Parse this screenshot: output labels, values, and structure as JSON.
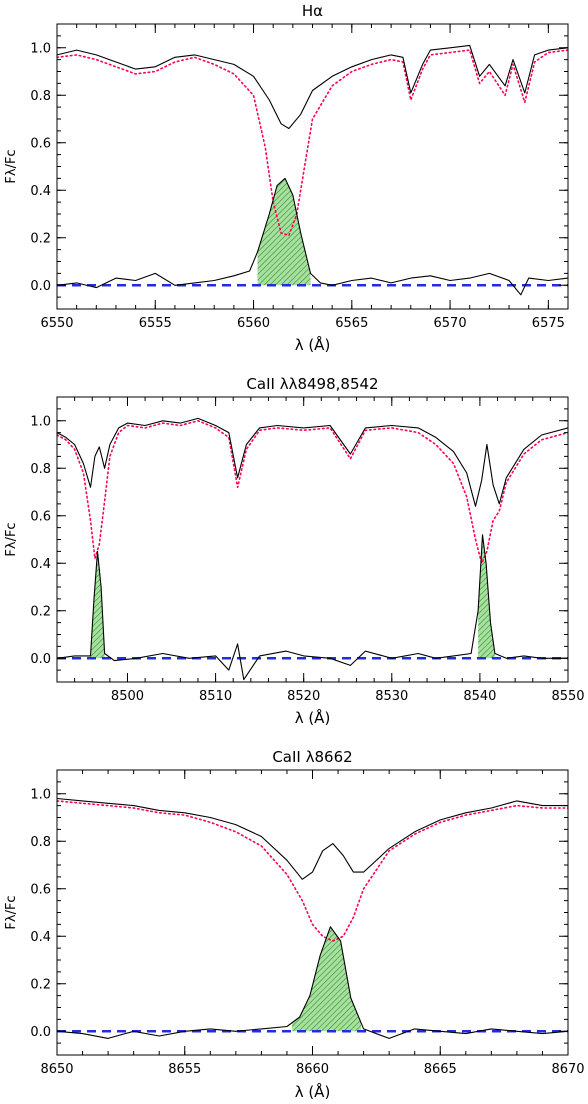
{
  "figure": {
    "colors": {
      "observed": "#000000",
      "model": "#ff0055",
      "zero": "#1f2fe0",
      "fill": "#a8e0a0",
      "hatch": "#2e8b2e"
    }
  },
  "chart_data": [
    {
      "type": "line",
      "title": "Hα",
      "xlabel": "λ (Å)",
      "ylabel": "Fλ/Fc",
      "xlim": [
        6550,
        6576
      ],
      "ylim": [
        -0.1,
        1.1
      ],
      "xticks": [
        "6550",
        "6555",
        "6560",
        "6565",
        "6570",
        "6575"
      ],
      "xtick_values": [
        6550,
        6555,
        6560,
        6565,
        6570,
        6575
      ],
      "yticks": [
        "0.0",
        "0.2",
        "0.4",
        "0.6",
        "0.8",
        "1.0"
      ],
      "ytick_values": [
        0,
        0.2,
        0.4,
        0.6,
        0.8,
        1.0
      ],
      "series": [
        {
          "role": "observed",
          "x": [
            6550,
            6551,
            6552,
            6553,
            6554,
            6555,
            6556,
            6557,
            6558,
            6559,
            6560,
            6560.8,
            6561.4,
            6561.8,
            6562.4,
            6563,
            6564,
            6565,
            6566,
            6567,
            6567.6,
            6568,
            6568.6,
            6569,
            6570,
            6571,
            6571.5,
            6572,
            6572.8,
            6573.2,
            6573.8,
            6574.3,
            6575,
            6576
          ],
          "y": [
            0.97,
            0.99,
            0.97,
            0.94,
            0.91,
            0.92,
            0.96,
            0.97,
            0.95,
            0.93,
            0.88,
            0.78,
            0.68,
            0.66,
            0.72,
            0.82,
            0.88,
            0.92,
            0.95,
            0.97,
            0.96,
            0.81,
            0.93,
            0.99,
            1.0,
            1.01,
            0.88,
            0.93,
            0.84,
            0.95,
            0.81,
            0.97,
            0.99,
            1.0
          ]
        },
        {
          "role": "model",
          "x": [
            6550,
            6551,
            6552,
            6553,
            6554,
            6555,
            6556,
            6557,
            6558,
            6559,
            6560,
            6560.6,
            6561,
            6561.4,
            6561.8,
            6562.2,
            6562.6,
            6563,
            6564,
            6565,
            6566,
            6567,
            6567.6,
            6568,
            6568.6,
            6569,
            6570,
            6571,
            6571.5,
            6572,
            6572.8,
            6573.2,
            6573.8,
            6574.3,
            6575,
            6576
          ],
          "y": [
            0.96,
            0.97,
            0.95,
            0.92,
            0.89,
            0.9,
            0.94,
            0.96,
            0.93,
            0.89,
            0.8,
            0.58,
            0.35,
            0.22,
            0.21,
            0.3,
            0.5,
            0.7,
            0.84,
            0.9,
            0.93,
            0.95,
            0.94,
            0.78,
            0.91,
            0.97,
            0.98,
            0.99,
            0.85,
            0.9,
            0.8,
            0.93,
            0.77,
            0.94,
            0.98,
            0.99
          ]
        },
        {
          "role": "residual",
          "x": [
            6550,
            6551,
            6552,
            6553,
            6554,
            6555,
            6556,
            6557,
            6558,
            6559,
            6559.8,
            6560.2,
            6560.8,
            6561.2,
            6561.6,
            6562,
            6562.4,
            6562.9,
            6563.4,
            6564,
            6565,
            6566,
            6567,
            6568,
            6569,
            6570,
            6571,
            6572,
            6573,
            6573.6,
            6574,
            6575,
            6576
          ],
          "y": [
            0.0,
            0.01,
            -0.01,
            0.03,
            0.02,
            0.05,
            0.0,
            0.01,
            0.02,
            0.04,
            0.06,
            0.14,
            0.3,
            0.42,
            0.45,
            0.38,
            0.22,
            0.05,
            0.01,
            0.0,
            0.02,
            0.03,
            0.01,
            0.03,
            0.04,
            0.02,
            0.03,
            0.05,
            0.02,
            -0.04,
            0.03,
            0.02,
            0.03
          ]
        }
      ],
      "fill_range": [
        6560.2,
        6562.9
      ],
      "zero_line": 0
    },
    {
      "type": "line",
      "title": "CaII λλ8498,8542",
      "xlabel": "λ (Å)",
      "ylabel": "Fλ/Fc",
      "xlim": [
        8492,
        8550
      ],
      "ylim": [
        -0.1,
        1.1
      ],
      "xticks": [
        "8500",
        "8510",
        "8520",
        "8530",
        "8540",
        "8550"
      ],
      "xtick_values": [
        8500,
        8510,
        8520,
        8530,
        8540,
        8550
      ],
      "yticks": [
        "0.0",
        "0.2",
        "0.4",
        "0.6",
        "0.8",
        "1.0"
      ],
      "ytick_values": [
        0,
        0.2,
        0.4,
        0.6,
        0.8,
        1.0
      ],
      "series": [
        {
          "role": "observed",
          "x": [
            8492,
            8493,
            8494,
            8495,
            8495.8,
            8496.3,
            8496.8,
            8497.4,
            8498,
            8499,
            8500,
            8502,
            8504,
            8506,
            8508,
            8510,
            8511.5,
            8512.5,
            8513.5,
            8515,
            8517,
            8520,
            8523,
            8525.3,
            8527,
            8530,
            8533,
            8535,
            8537,
            8538.5,
            8539.5,
            8540.2,
            8540.8,
            8541.5,
            8542.2,
            8543,
            8545,
            8547,
            8550
          ],
          "y": [
            0.95,
            0.93,
            0.9,
            0.82,
            0.72,
            0.85,
            0.89,
            0.8,
            0.9,
            0.97,
            0.99,
            0.98,
            1.0,
            0.99,
            1.01,
            0.98,
            0.95,
            0.76,
            0.9,
            0.97,
            0.98,
            0.97,
            0.98,
            0.86,
            0.97,
            0.98,
            0.97,
            0.93,
            0.87,
            0.78,
            0.64,
            0.75,
            0.9,
            0.73,
            0.65,
            0.76,
            0.88,
            0.94,
            0.97
          ]
        },
        {
          "role": "model",
          "x": [
            8492,
            8493,
            8494,
            8495,
            8495.8,
            8496.3,
            8496.8,
            8497.4,
            8498,
            8499,
            8500,
            8502,
            8504,
            8506,
            8508,
            8510,
            8511.5,
            8512.5,
            8513.5,
            8515,
            8517,
            8520,
            8523,
            8525.3,
            8527,
            8530,
            8533,
            8535,
            8537,
            8538.5,
            8539.5,
            8540.2,
            8540.8,
            8541.5,
            8542.2,
            8543,
            8545,
            8547,
            8550
          ],
          "y": [
            0.94,
            0.92,
            0.88,
            0.78,
            0.58,
            0.42,
            0.48,
            0.66,
            0.85,
            0.95,
            0.98,
            0.97,
            0.99,
            0.98,
            1.0,
            0.97,
            0.93,
            0.72,
            0.88,
            0.96,
            0.97,
            0.96,
            0.97,
            0.84,
            0.96,
            0.97,
            0.95,
            0.9,
            0.82,
            0.68,
            0.5,
            0.4,
            0.45,
            0.58,
            0.62,
            0.74,
            0.86,
            0.92,
            0.95
          ]
        },
        {
          "role": "residual",
          "x": [
            8492,
            8494,
            8495.8,
            8496.2,
            8496.6,
            8497,
            8497.4,
            8498.5,
            8501,
            8504,
            8507,
            8510,
            8511.5,
            8512.5,
            8513.2,
            8515,
            8518,
            8520,
            8523,
            8525.3,
            8527,
            8530,
            8533,
            8535,
            8537,
            8539,
            8539.8,
            8540.3,
            8540.7,
            8541.2,
            8541.7,
            8543,
            8545,
            8547,
            8550
          ],
          "y": [
            0.0,
            0.01,
            0.01,
            0.25,
            0.45,
            0.3,
            0.02,
            -0.01,
            0.0,
            0.02,
            0.0,
            0.01,
            -0.05,
            0.06,
            -0.09,
            0.01,
            0.03,
            0.01,
            0.0,
            -0.03,
            0.03,
            0.0,
            0.02,
            0.0,
            0.01,
            0.02,
            0.2,
            0.52,
            0.4,
            0.15,
            0.02,
            0.0,
            0.01,
            0.0,
            0.0
          ]
        }
      ],
      "fill_ranges": [
        [
          8495.8,
          8497.4
        ],
        [
          8539.8,
          8541.7
        ]
      ],
      "zero_line": 0
    },
    {
      "type": "line",
      "title": "CaII λ8662",
      "xlabel": "λ (Å)",
      "ylabel": "Fλ/Fc",
      "xlim": [
        8650,
        8670
      ],
      "ylim": [
        -0.1,
        1.1
      ],
      "xticks": [
        "8650",
        "8655",
        "8660",
        "8665",
        "8670"
      ],
      "xtick_values": [
        8650,
        8655,
        8660,
        8665,
        8670
      ],
      "yticks": [
        "0.0",
        "0.2",
        "0.4",
        "0.6",
        "0.8",
        "1.0"
      ],
      "ytick_values": [
        0,
        0.2,
        0.4,
        0.6,
        0.8,
        1.0
      ],
      "series": [
        {
          "role": "observed",
          "x": [
            8650,
            8651,
            8652,
            8653,
            8654,
            8655,
            8656,
            8657,
            8658,
            8659,
            8659.6,
            8660,
            8660.4,
            8660.8,
            8661.2,
            8661.6,
            8662,
            8663,
            8664,
            8665,
            8666,
            8667,
            8668,
            8669,
            8670
          ],
          "y": [
            0.98,
            0.97,
            0.96,
            0.95,
            0.93,
            0.92,
            0.9,
            0.87,
            0.82,
            0.72,
            0.64,
            0.67,
            0.76,
            0.79,
            0.74,
            0.67,
            0.67,
            0.77,
            0.84,
            0.89,
            0.92,
            0.94,
            0.97,
            0.95,
            0.95
          ]
        },
        {
          "role": "model",
          "x": [
            8650,
            8651,
            8652,
            8653,
            8654,
            8655,
            8656,
            8657,
            8658,
            8659,
            8659.6,
            8660,
            8660.4,
            8660.8,
            8661.2,
            8661.6,
            8662,
            8663,
            8664,
            8665,
            8666,
            8667,
            8668,
            8669,
            8670
          ],
          "y": [
            0.97,
            0.96,
            0.95,
            0.94,
            0.92,
            0.91,
            0.88,
            0.84,
            0.78,
            0.66,
            0.55,
            0.45,
            0.4,
            0.38,
            0.4,
            0.48,
            0.6,
            0.76,
            0.83,
            0.88,
            0.91,
            0.93,
            0.95,
            0.94,
            0.94
          ]
        },
        {
          "role": "residual",
          "x": [
            8650,
            8651,
            8652,
            8653,
            8654,
            8655,
            8656,
            8657,
            8658,
            8659,
            8659.5,
            8659.9,
            8660.3,
            8660.7,
            8661.1,
            8661.5,
            8662,
            8663,
            8664,
            8665,
            8666,
            8667,
            8668,
            8669,
            8670
          ],
          "y": [
            0.0,
            -0.01,
            -0.03,
            0.0,
            -0.02,
            0.0,
            0.01,
            0.0,
            0.01,
            0.02,
            0.06,
            0.15,
            0.32,
            0.44,
            0.38,
            0.14,
            0.01,
            -0.03,
            0.01,
            0.0,
            -0.01,
            0.01,
            0.0,
            -0.01,
            0.0
          ]
        }
      ],
      "fill_range": [
        8659.2,
        8661.9
      ],
      "zero_line": 0
    }
  ]
}
